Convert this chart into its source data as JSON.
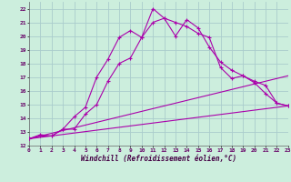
{
  "xlabel": "Windchill (Refroidissement éolien,°C)",
  "background_color": "#cceedd",
  "grid_color": "#aacccc",
  "line_color": "#aa00aa",
  "xlim": [
    0,
    23
  ],
  "ylim": [
    12,
    22.5
  ],
  "yticks": [
    12,
    13,
    14,
    15,
    16,
    17,
    18,
    19,
    20,
    21,
    22
  ],
  "xticks": [
    0,
    1,
    2,
    3,
    4,
    5,
    6,
    7,
    8,
    9,
    10,
    11,
    12,
    13,
    14,
    15,
    16,
    17,
    18,
    19,
    20,
    21,
    22,
    23
  ],
  "lines": [
    {
      "x": [
        0,
        1,
        2,
        3,
        4,
        5,
        6,
        7,
        8,
        9,
        10,
        11,
        12,
        13,
        14,
        15,
        16,
        17,
        18,
        19,
        20,
        21,
        22,
        23
      ],
      "y": [
        12.5,
        12.8,
        12.7,
        13.2,
        14.1,
        14.8,
        17.0,
        18.3,
        19.9,
        20.4,
        19.9,
        22.0,
        21.3,
        20.0,
        21.2,
        20.6,
        19.2,
        18.1,
        17.5,
        17.1,
        16.6,
        15.8,
        15.1,
        14.9
      ],
      "marker": true
    },
    {
      "x": [
        0,
        1,
        2,
        3,
        4,
        5,
        6,
        7,
        8,
        9,
        10,
        11,
        12,
        13,
        14,
        15,
        16,
        17,
        18,
        19,
        20,
        21,
        22,
        23
      ],
      "y": [
        12.5,
        12.7,
        12.7,
        13.2,
        13.2,
        14.3,
        15.0,
        16.7,
        18.0,
        18.4,
        19.9,
        21.0,
        21.3,
        21.0,
        20.7,
        20.2,
        19.9,
        17.7,
        16.9,
        17.1,
        16.7,
        16.4,
        15.1,
        14.9
      ],
      "marker": true
    },
    {
      "x": [
        0,
        23
      ],
      "y": [
        12.5,
        17.1
      ],
      "marker": false
    },
    {
      "x": [
        0,
        23
      ],
      "y": [
        12.5,
        14.9
      ],
      "marker": false
    }
  ]
}
